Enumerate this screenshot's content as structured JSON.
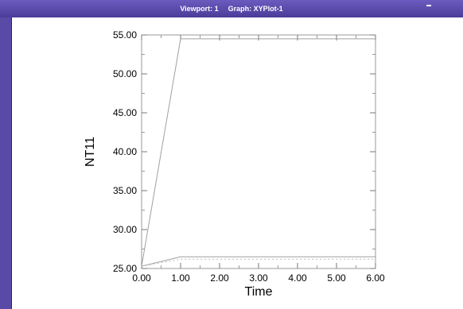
{
  "window": {
    "viewport_label": "Viewport: 1",
    "graph_label": "Graph: XYPlot-1"
  },
  "chart_data": {
    "type": "line",
    "title": "",
    "xlabel": "Time",
    "ylabel": "NT11",
    "xlim": [
      0,
      6
    ],
    "ylim": [
      25,
      55
    ],
    "x_ticks": [
      "0.00",
      "1.00",
      "2.00",
      "3.00",
      "4.00",
      "5.00",
      "6.00"
    ],
    "y_ticks": [
      "25.00",
      "30.00",
      "35.00",
      "40.00",
      "45.00",
      "50.00",
      "55.00"
    ],
    "grid": false,
    "series": [
      {
        "style": "solid",
        "color": "#a0a0a0",
        "points": [
          [
            0,
            25.3
          ],
          [
            1,
            54.5
          ],
          [
            6,
            54.5
          ]
        ]
      },
      {
        "style": "solid",
        "color": "#a0a0a0",
        "points": [
          [
            0,
            25.3
          ],
          [
            1,
            26.5
          ],
          [
            6,
            26.5
          ]
        ]
      },
      {
        "style": "dotted",
        "color": "#b8b8b8",
        "points": [
          [
            0,
            25.3
          ],
          [
            1,
            26.2
          ],
          [
            6,
            26.2
          ]
        ]
      }
    ]
  }
}
